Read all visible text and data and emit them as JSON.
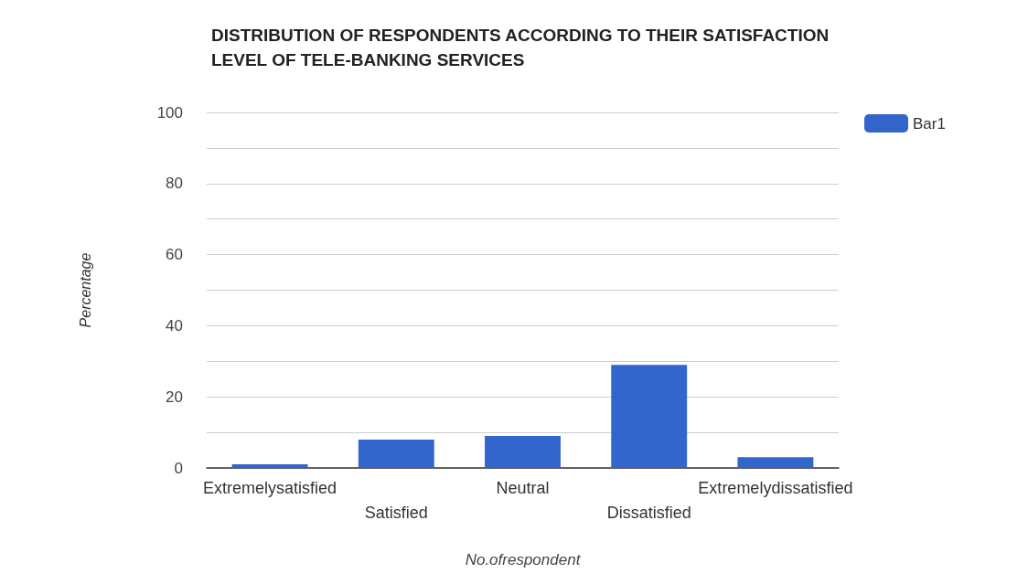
{
  "chart_data": {
    "type": "bar",
    "title": "DISTRIBUTION OF RESPONDENTS ACCORDING TO THEIR SATISFACTION LEVEL OF TELE-BANKING SERVICES",
    "xlabel": "No.ofrespondent",
    "ylabel": "Percentage",
    "categories": [
      "Extremelysatisfied",
      "Satisfied",
      "Neutral",
      "Dissatisfied",
      "Extremelydissatisfied"
    ],
    "series": [
      {
        "name": "Bar1",
        "color": "#3366cc",
        "values": [
          1,
          8,
          9,
          29,
          3
        ]
      }
    ],
    "ylim": [
      0,
      100
    ],
    "yticks": [
      0,
      {
        "value": 10,
        "label": null
      },
      20,
      {
        "value": 30,
        "label": null
      },
      40,
      {
        "value": 50,
        "label": null
      },
      60,
      {
        "value": 70,
        "label": null
      },
      80,
      {
        "value": 90,
        "label": null
      },
      100
    ],
    "grid": "y",
    "legend": "top right"
  }
}
